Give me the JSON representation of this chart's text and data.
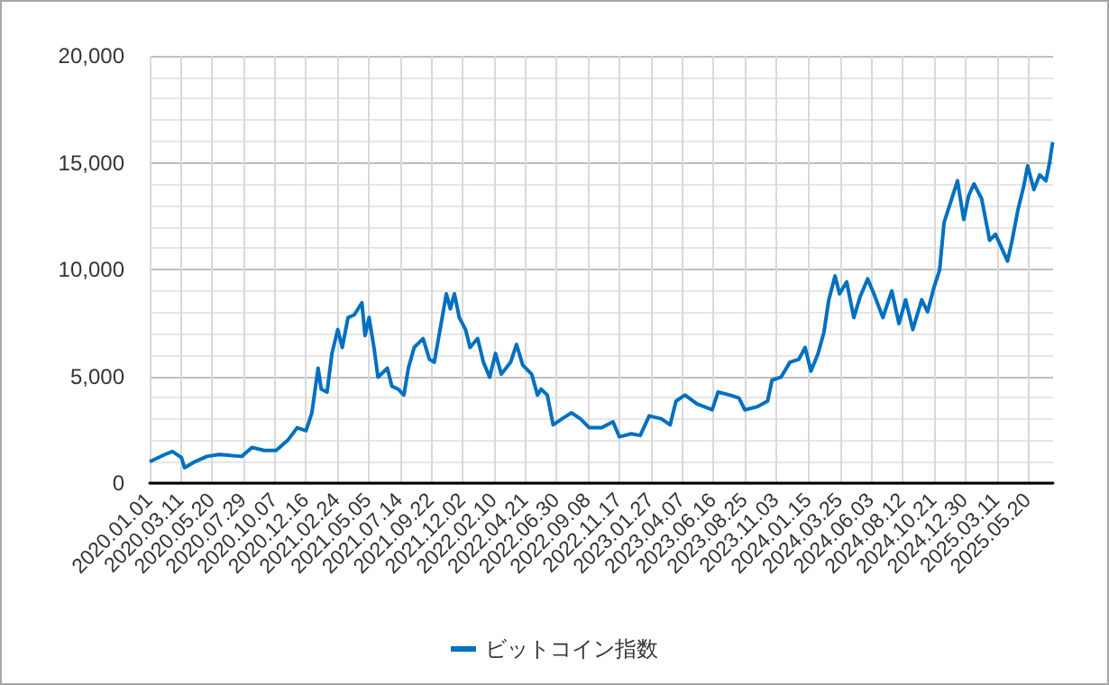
{
  "chart_data": {
    "type": "line",
    "xlim": [
      "2020-01-01",
      "2025-07-15"
    ],
    "ylim": [
      0,
      20000
    ],
    "yticks": [
      0,
      {
        "value": 5000,
        "label": "5,000"
      },
      {
        "value": 10000,
        "label": "10,000"
      },
      {
        "value": 15000,
        "label": "15,000"
      },
      {
        "value": 20000,
        "label": "20,000"
      }
    ],
    "xticks": [
      {
        "value": "2020-01-01",
        "label": "2020.01.01"
      },
      {
        "value": "2020-03-11",
        "label": "2020.03.11"
      },
      {
        "value": "2020-05-20",
        "label": "2020.05.20"
      },
      {
        "value": "2020-07-29",
        "label": "2020.07.29"
      },
      {
        "value": "2020-10-07",
        "label": "2020.10.07"
      },
      {
        "value": "2020-12-16",
        "label": "2020.12.16"
      },
      {
        "value": "2021-02-24",
        "label": "2021.02.24"
      },
      {
        "value": "2021-05-05",
        "label": "2021.05.05"
      },
      {
        "value": "2021-07-14",
        "label": "2021.07.14"
      },
      {
        "value": "2021-09-22",
        "label": "2021.09.22"
      },
      {
        "value": "2021-12-02",
        "label": "2021.12.02"
      },
      {
        "value": "2022-02-10",
        "label": "2022.02.10"
      },
      {
        "value": "2022-04-21",
        "label": "2022.04.21"
      },
      {
        "value": "2022-06-30",
        "label": "2022.06.30"
      },
      {
        "value": "2022-09-08",
        "label": "2022.09.08"
      },
      {
        "value": "2022-11-17",
        "label": "2022.11.17"
      },
      {
        "value": "2023-01-27",
        "label": "2023.01.27"
      },
      {
        "value": "2023-04-07",
        "label": "2023.04.07"
      },
      {
        "value": "2023-06-16",
        "label": "2023.06.16"
      },
      {
        "value": "2023-08-25",
        "label": "2023.08.25"
      },
      {
        "value": "2023-11-03",
        "label": "2023.11.03"
      },
      {
        "value": "2024-01-15",
        "label": "2024.01.15"
      },
      {
        "value": "2024-03-25",
        "label": "2024.03.25"
      },
      {
        "value": "2024-06-03",
        "label": "2024.06.03"
      },
      {
        "value": "2024-08-12",
        "label": "2024.08.12"
      },
      {
        "value": "2024-10-21",
        "label": "2024.10.21"
      },
      {
        "value": "2024-12-30",
        "label": "2024.12.30"
      },
      {
        "value": "2025-03-11",
        "label": "2025.03.11"
      },
      {
        "value": "2025-05-20",
        "label": "2025.05.20"
      }
    ],
    "x": [
      "2020-01-01",
      "2020-02-04",
      "2020-02-21",
      "2020-03-12",
      "2020-03-19",
      "2020-04-11",
      "2020-05-08",
      "2020-06-04",
      "2020-07-25",
      "2020-08-17",
      "2020-09-13",
      "2020-10-10",
      "2020-11-06",
      "2020-11-26",
      "2020-12-16",
      "2020-12-29",
      "2021-01-12",
      "2021-01-19",
      "2021-02-01",
      "2021-02-12",
      "2021-02-25",
      "2021-03-07",
      "2021-03-20",
      "2021-04-03",
      "2021-04-20",
      "2021-04-27",
      "2021-05-06",
      "2021-05-17",
      "2021-05-26",
      "2021-06-16",
      "2021-06-26",
      "2021-07-10",
      "2021-07-23",
      "2021-08-02",
      "2021-08-15",
      "2021-09-04",
      "2021-09-18",
      "2021-09-29",
      "2021-10-12",
      "2021-10-26",
      "2021-11-04",
      "2021-11-13",
      "2021-11-24",
      "2021-12-08",
      "2021-12-18",
      "2022-01-04",
      "2022-01-17",
      "2022-01-31",
      "2022-02-13",
      "2022-02-26",
      "2022-03-19",
      "2022-04-01",
      "2022-04-15",
      "2022-05-05",
      "2022-05-18",
      "2022-05-26",
      "2022-06-09",
      "2022-06-22",
      "2022-07-12",
      "2022-08-02",
      "2022-08-22",
      "2022-09-11",
      "2022-10-08",
      "2022-11-03",
      "2022-11-17",
      "2022-12-14",
      "2023-01-03",
      "2023-01-23",
      "2023-02-19",
      "2023-03-11",
      "2023-03-24",
      "2023-04-13",
      "2023-05-10",
      "2023-06-13",
      "2023-06-26",
      "2023-07-23",
      "2023-08-12",
      "2023-08-25",
      "2023-09-21",
      "2023-10-15",
      "2023-10-25",
      "2023-11-14",
      "2023-12-04",
      "2023-12-24",
      "2024-01-07",
      "2024-01-20",
      "2024-02-05",
      "2024-02-18",
      "2024-02-29",
      "2024-03-14",
      "2024-03-24",
      "2024-04-09",
      "2024-04-25",
      "2024-05-09",
      "2024-05-26",
      "2024-06-09",
      "2024-06-29",
      "2024-07-19",
      "2024-08-04",
      "2024-08-19",
      "2024-09-04",
      "2024-09-24",
      "2024-10-07",
      "2024-10-21",
      "2024-11-03",
      "2024-11-13",
      "2024-11-26",
      "2024-12-13",
      "2024-12-27",
      "2025-01-07",
      "2025-01-19",
      "2025-02-05",
      "2025-02-23",
      "2025-03-08",
      "2025-03-17",
      "2025-04-04",
      "2025-04-13",
      "2025-04-27",
      "2025-05-10",
      "2025-05-19",
      "2025-06-02",
      "2025-06-15",
      "2025-06-29",
      "2025-07-07",
      "2025-07-14"
    ],
    "series": [
      {
        "name": "ビットコイン指数",
        "color": "#0070c0",
        "values": [
          1000,
          1340,
          1480,
          1200,
          720,
          1000,
          1250,
          1340,
          1250,
          1670,
          1530,
          1530,
          2030,
          2590,
          2450,
          3290,
          5380,
          4400,
          4260,
          6070,
          7190,
          6350,
          7750,
          7880,
          8440,
          6910,
          7750,
          6350,
          4960,
          5380,
          4540,
          4400,
          4120,
          5380,
          6350,
          6770,
          5800,
          5660,
          7190,
          8860,
          8160,
          8860,
          7750,
          7190,
          6350,
          6770,
          5660,
          4960,
          6070,
          5100,
          5660,
          6490,
          5520,
          5100,
          4120,
          4400,
          4120,
          2730,
          3010,
          3290,
          3010,
          2590,
          2590,
          2870,
          2170,
          2310,
          2230,
          3150,
          3010,
          2730,
          3840,
          4120,
          3710,
          3430,
          4260,
          4120,
          3980,
          3430,
          3570,
          3840,
          4820,
          4960,
          5660,
          5800,
          6350,
          5240,
          6070,
          7050,
          8580,
          9700,
          8860,
          9420,
          7750,
          8720,
          9560,
          8860,
          7750,
          9000,
          7470,
          8580,
          7190,
          8580,
          8020,
          9140,
          9970,
          12200,
          13040,
          14150,
          12340,
          13460,
          14010,
          13320,
          11370,
          11650,
          11230,
          10390,
          11230,
          12760,
          13870,
          14850,
          13740,
          14430,
          14150,
          14990,
          15960
        ]
      }
    ],
    "grid": true,
    "legend": "bottom",
    "marker": "none",
    "line_style": "solid"
  }
}
